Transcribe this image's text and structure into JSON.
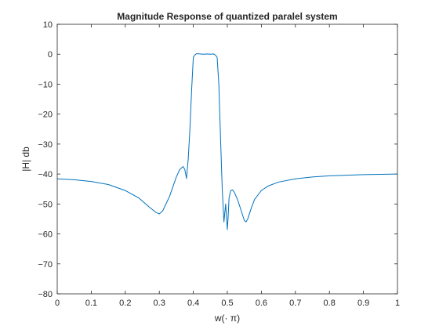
{
  "chart_data": {
    "type": "line",
    "title": "Magnitude Response of quantized paralel system",
    "xlabel": "w(· π)",
    "ylabel": "|H| db",
    "xlim": [
      0,
      1
    ],
    "ylim": [
      -80,
      10
    ],
    "xticks": [
      0,
      0.1,
      0.2,
      0.3,
      0.4,
      0.5,
      0.6,
      0.7,
      0.8,
      0.9,
      1
    ],
    "xtick_labels": [
      "0",
      "0.1",
      "0.2",
      "0.3",
      "0.4",
      "0.5",
      "0.6",
      "0.7",
      "0.8",
      "0.9",
      "1"
    ],
    "yticks": [
      10,
      0,
      -10,
      -20,
      -30,
      -40,
      -50,
      -60,
      -70,
      -80
    ],
    "ytick_labels": [
      "10",
      "0",
      "−10",
      "−20",
      "−30",
      "−40",
      "−50",
      "−60",
      "−70",
      "−80"
    ],
    "grid": false,
    "line_color": "#0072BD",
    "series": [
      {
        "x": [
          0,
          0.05,
          0.1,
          0.15,
          0.2,
          0.24,
          0.27,
          0.29,
          0.3,
          0.31,
          0.33,
          0.35,
          0.36,
          0.37,
          0.375,
          0.38,
          0.385,
          0.39,
          0.395,
          0.4,
          0.405,
          0.41,
          0.42,
          0.43,
          0.44,
          0.45,
          0.46,
          0.465,
          0.47,
          0.475,
          0.48,
          0.485,
          0.49,
          0.495,
          0.5,
          0.502,
          0.505,
          0.51,
          0.515,
          0.52,
          0.53,
          0.54,
          0.55,
          0.555,
          0.56,
          0.57,
          0.58,
          0.6,
          0.62,
          0.65,
          0.7,
          0.75,
          0.8,
          0.85,
          0.9,
          0.95,
          1.0
        ],
        "y": [
          -41.6,
          -41.9,
          -42.5,
          -43.5,
          -45.5,
          -48.0,
          -51.0,
          -52.8,
          -53.3,
          -52.3,
          -47.5,
          -41.0,
          -38.5,
          -37.5,
          -38.5,
          -41.5,
          -35.0,
          -25.0,
          -12.0,
          -1.0,
          -0.2,
          0.2,
          0.1,
          0.0,
          0.1,
          0.0,
          0.1,
          -0.3,
          -1.0,
          -10.0,
          -28.0,
          -45.0,
          -56.0,
          -50.0,
          -58.5,
          -55.0,
          -48.0,
          -45.5,
          -45.3,
          -46.0,
          -48.5,
          -52.0,
          -55.5,
          -56.0,
          -55.0,
          -51.5,
          -48.5,
          -45.5,
          -44.0,
          -42.7,
          -41.6,
          -41.0,
          -40.6,
          -40.4,
          -40.2,
          -40.1,
          -40.0
        ]
      }
    ]
  }
}
